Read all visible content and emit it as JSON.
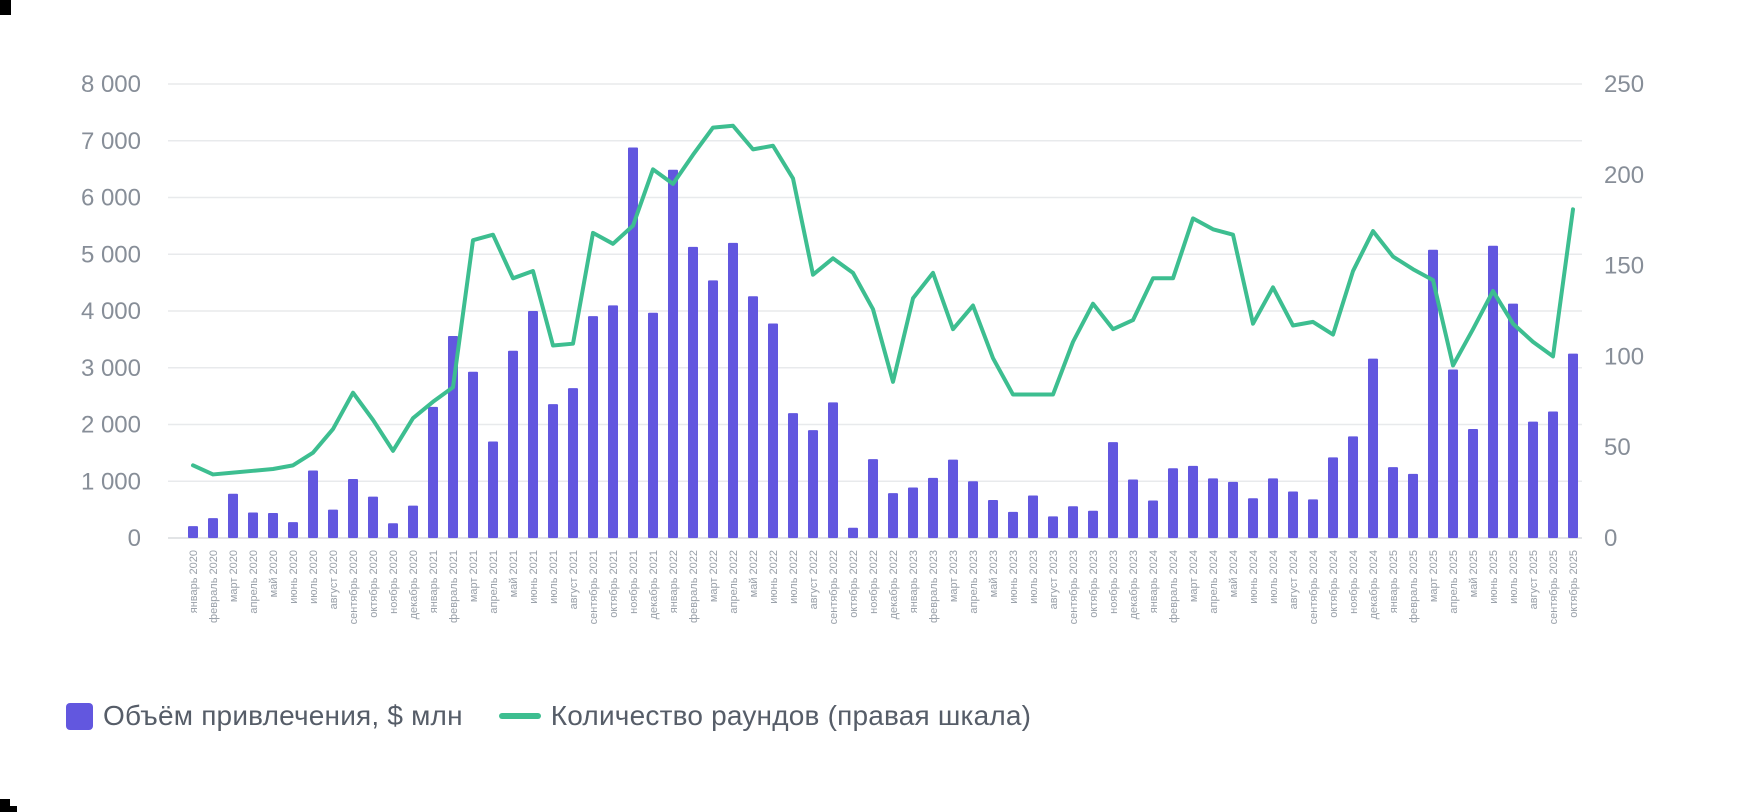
{
  "page": {
    "background": "#ffffff"
  },
  "colors": {
    "bar": "#6257DF",
    "line": "#3DBE90",
    "grid": "#E8EAEC",
    "baseline": "#D8DBDE",
    "axis_text": "#878E98",
    "month_text": "#99A0A9",
    "legend_text": "#565D68",
    "crop_mark": "#000000"
  },
  "legend": {
    "position": "bottom-left",
    "volume_label": "Объём привлечения, $ млн",
    "rounds_label": "Количество раундов (правая шкала)"
  },
  "chart_data": {
    "type": "bar+line",
    "grid": true,
    "legend_position": "bottom-left",
    "categories": [
      "январь 2020",
      "февраль 2020",
      "март 2020",
      "апрель 2020",
      "май 2020",
      "июнь 2020",
      "июль 2020",
      "август 2020",
      "сентябрь 2020",
      "октябрь 2020",
      "ноябрь 2020",
      "декабрь 2020",
      "январь 2021",
      "февраль 2021",
      "март 2021",
      "апрель 2021",
      "май 2021",
      "июнь 2021",
      "июль 2021",
      "август 2021",
      "сентябрь 2021",
      "октябрь 2021",
      "ноябрь 2021",
      "декабрь 2021",
      "январь 2022",
      "февраль 2022",
      "март 2022",
      "апрель 2022",
      "май 2022",
      "июнь 2022",
      "июль 2022",
      "август 2022",
      "сентябрь 2022",
      "октябрь 2022",
      "ноябрь 2022",
      "декабрь 2022",
      "январь 2023",
      "февраль 2023",
      "март 2023",
      "апрель 2023",
      "май 2023",
      "июнь 2023",
      "июль 2023",
      "август 2023",
      "сентябрь 2023",
      "октябрь 2023",
      "ноябрь 2023",
      "декабрь 2023",
      "январь 2024",
      "февраль 2024",
      "март 2024",
      "апрель 2024",
      "май 2024",
      "июнь 2024",
      "июль 2024",
      "август 2024",
      "сентябрь 2024",
      "октябрь 2024",
      "ноябрь 2024",
      "декабрь 2024",
      "январь 2025",
      "февраль 2025",
      "март 2025",
      "апрель 2025",
      "май 2025",
      "июнь 2025",
      "июль 2025",
      "август 2025",
      "сентябрь 2025",
      "октябрь 2025"
    ],
    "series": [
      {
        "name": "Объём привлечения, $ млн",
        "type": "bar",
        "axis": "left",
        "color": "#6257DF",
        "values": [
          210,
          350,
          780,
          450,
          440,
          280,
          1190,
          500,
          1040,
          730,
          260,
          570,
          2310,
          3560,
          2930,
          1700,
          3300,
          4000,
          2360,
          2640,
          3910,
          4100,
          6880,
          3970,
          6490,
          5130,
          4540,
          5200,
          4260,
          3780,
          2200,
          1900,
          2390,
          180,
          1390,
          790,
          890,
          1060,
          1380,
          1000,
          670,
          460,
          750,
          380,
          560,
          480,
          1690,
          1030,
          660,
          1230,
          1270,
          1050,
          990,
          700,
          1050,
          820,
          680,
          1420,
          1790,
          3160,
          1250,
          1130,
          5080,
          2970,
          1920,
          5150,
          4130,
          2050,
          2230,
          3250
        ]
      },
      {
        "name": "Количество раундов (правая шкала)",
        "type": "line",
        "axis": "right",
        "color": "#3DBE90",
        "values": [
          40,
          35,
          36,
          37,
          38,
          40,
          47,
          60,
          80,
          65,
          48,
          66,
          75,
          83,
          164,
          167,
          143,
          147,
          106,
          107,
          168,
          162,
          172,
          203,
          195,
          211,
          226,
          227,
          214,
          216,
          198,
          145,
          154,
          146,
          126,
          86,
          132,
          146,
          115,
          128,
          99,
          79,
          79,
          79,
          108,
          129,
          115,
          120,
          143,
          143,
          176,
          170,
          167,
          118,
          138,
          117,
          119,
          112,
          147,
          169,
          155,
          148,
          142,
          95,
          115,
          136,
          118,
          108,
          100,
          181
        ]
      }
    ],
    "left_axis": {
      "min": 0,
      "max": 8000,
      "step": 1000,
      "labels": [
        "0",
        "1 000",
        "2 000",
        "3 000",
        "4 000",
        "5 000",
        "6 000",
        "7 000",
        "8 000"
      ]
    },
    "right_axis": {
      "min": 0,
      "max": 250,
      "step": 50,
      "labels": [
        "0",
        "50",
        "100",
        "150",
        "200",
        "250"
      ]
    },
    "title": "",
    "xlabel": "",
    "ylabel": ""
  }
}
